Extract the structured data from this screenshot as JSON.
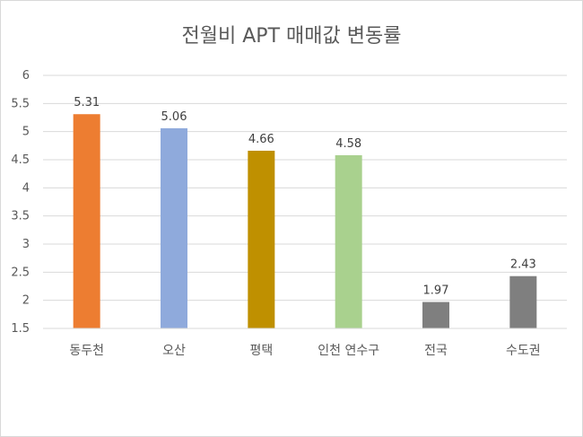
{
  "chart_data": {
    "type": "bar",
    "title": "전월비 APT 매매값 변동률",
    "categories": [
      "동두천",
      "오산",
      "평택",
      "인천 연수구",
      "전국",
      "수도권"
    ],
    "values": [
      5.31,
      5.06,
      4.66,
      4.58,
      1.97,
      2.43
    ],
    "colors": [
      "#ED7D31",
      "#8FAADC",
      "#BF9000",
      "#A9D18E",
      "#7F7F7F",
      "#7F7F7F"
    ],
    "ylim": [
      1.5,
      6
    ],
    "yticks": [
      "1.5",
      "2",
      "2.5",
      "3",
      "3.5",
      "4",
      "4.5",
      "5",
      "5.5",
      "6"
    ],
    "grid": true,
    "legend": "none",
    "xlabel": "",
    "ylabel": ""
  }
}
